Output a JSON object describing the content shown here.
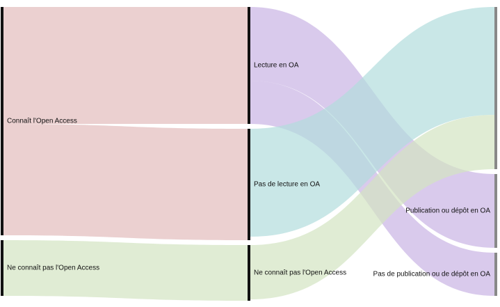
{
  "chart_data": {
    "type": "sankey",
    "nodes": [
      {
        "name": "Connaît l'Open Access",
        "color": "#e3bcbc"
      },
      {
        "name": "Ne connaît pas l'Open Access",
        "color": "#d3e4c2"
      },
      {
        "name": "Lecture en OA",
        "color": "#c9b3e4"
      },
      {
        "name": "Pas de lecture en OA",
        "color": "#b2dddd"
      },
      {
        "name": "Ne connaît pas l'Open Access",
        "color": "#d3e4c2"
      },
      {
        "color": "#888888"
      },
      {
        "name": "Publication ou dépôt en OA",
        "color": "#888888"
      },
      {
        "name": "Pas de publication ou de dépôt en OA",
        "color": "#888888"
      }
    ],
    "links": [
      {
        "source": 0,
        "target": 2,
        "value": 168
      },
      {
        "source": 0,
        "target": 3,
        "value": 160
      },
      {
        "source": 1,
        "target": 4,
        "value": 80
      },
      {
        "source": 2,
        "target": 6,
        "value": 106
      },
      {
        "source": 2,
        "target": 7,
        "value": 62
      },
      {
        "source": 3,
        "target": 5,
        "value": 155
      },
      {
        "source": 4,
        "target": 5,
        "value": 78
      }
    ]
  }
}
